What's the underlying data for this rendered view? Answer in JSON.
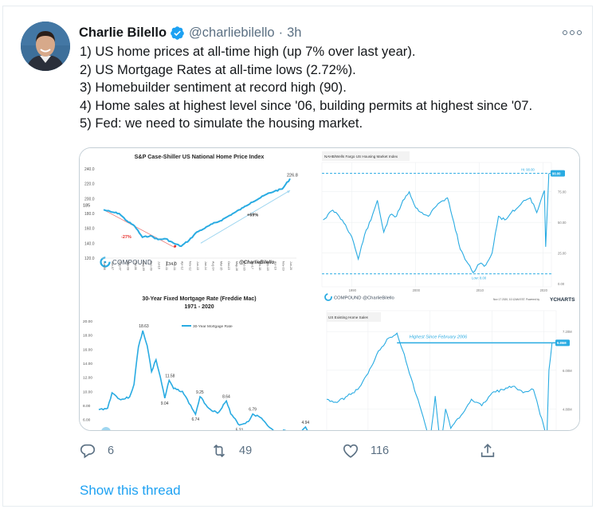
{
  "tweet": {
    "author": {
      "name": "Charlie Bilello",
      "handle": "@charliebilello",
      "verified": true,
      "avatar_icon": "profile-photo"
    },
    "separator": "·",
    "time": "3h",
    "more_icon": "more-options-icon",
    "lines": [
      "1) US home prices at all-time high (up 7% over last year).",
      "2) US Mortgage Rates at all-time lows (2.72%).",
      "3) Homebuilder sentiment at record high (90).",
      "4) Home sales at highest level since '06, building permits at highest since '07.",
      "5) Fed: we need to simulate the housing market."
    ],
    "actions": {
      "reply": {
        "icon": "reply-icon",
        "count": "6"
      },
      "retweet": {
        "icon": "retweet-icon",
        "count": "49"
      },
      "like": {
        "icon": "heart-icon",
        "count": "116"
      },
      "share": {
        "icon": "share-icon"
      }
    },
    "show_thread": "Show this thread"
  },
  "colors": {
    "accent": "#1da1f2",
    "secondary_text": "#5b7083",
    "primary_text": "#14171a",
    "border": "#e6ecf0",
    "chart_line": "#29abe2",
    "chart_red": "#e8322d"
  },
  "chart_data": [
    {
      "type": "line",
      "title": "S&P Case-Shiller US National Home Price Index",
      "ylim": [
        120,
        240
      ],
      "yticks": [
        "240.0",
        "220.0",
        "200.0",
        "180.0",
        "160.0",
        "140.0",
        "120.0"
      ],
      "categories": [
        "Jun-06",
        "Jan-07",
        "Aug-07",
        "Mar-08",
        "Oct-08",
        "May-09",
        "Dec-09",
        "Jul-10",
        "Feb-11",
        "Sep-11",
        "Apr-12",
        "Nov-12",
        "Jun-13",
        "Jan-14",
        "Aug-14",
        "Mar-15",
        "Oct-15",
        "May-16",
        "Dec-16",
        "Jul-17",
        "Feb-18",
        "Sep-18",
        "Apr-19",
        "Nov-19",
        "Jun-20"
      ],
      "values": [
        185,
        182,
        180,
        170,
        163,
        148,
        150,
        145,
        146,
        140,
        136,
        144,
        155,
        160,
        166,
        170,
        176,
        182,
        188,
        195,
        200,
        206,
        210,
        213,
        226.8
      ],
      "annotations": {
        "start": "185",
        "low": "134.0",
        "high": "226.8",
        "decline": "-27%",
        "rise": "+69%",
        "brand": "COMPOUND",
        "credit": "@CharlieBilello"
      }
    },
    {
      "type": "line",
      "title": "30-Year Fixed Mortgage Rate (Freddie Mac)",
      "subtitle": "1971 - 2020",
      "legend": "30-Year Mortgage Rate",
      "ylim": [
        4,
        20
      ],
      "yticks": [
        "20.00",
        "18.00",
        "16.00",
        "14.00",
        "12.00",
        "10.00",
        "8.00",
        "6.00"
      ],
      "x": [
        1971,
        1973,
        1974,
        1976,
        1978,
        1979,
        1980,
        1981,
        1982,
        1983,
        1984,
        1985,
        1986,
        1987,
        1988,
        1990,
        1993,
        1994,
        1996,
        1998,
        2000,
        2001,
        2003,
        2005,
        2006,
        2008,
        2010,
        2012,
        2013,
        2016,
        2018,
        2020
      ],
      "values": [
        7.4,
        7.6,
        9.8,
        8.8,
        9.2,
        11,
        16.3,
        18.63,
        16.5,
        12.8,
        14.5,
        12,
        9.04,
        11.58,
        10.4,
        10,
        6.74,
        9.25,
        7.6,
        6.9,
        8.64,
        6.8,
        5.21,
        5.7,
        6.79,
        6.2,
        4.8,
        3.5,
        4.5,
        3.5,
        4.94,
        2.72
      ],
      "annotations": [
        "18.63",
        "11.58",
        "9.04",
        "9.25",
        "6.74",
        "8.64",
        "5.21",
        "6.79",
        "4.94"
      ]
    },
    {
      "type": "line",
      "title": "NAHB/Wells Fargo US Housing Market Index",
      "ylim": [
        0,
        95
      ],
      "yticks": [
        "75.00",
        "50.00",
        "25.00",
        "0.00"
      ],
      "xticks": [
        "1990",
        "2000",
        "2010",
        "2020"
      ],
      "x": [
        1985.5,
        1987,
        1988,
        1989,
        1990,
        1991,
        1992,
        1993,
        1994,
        1995,
        1996,
        1997,
        1998,
        1999,
        2000,
        2001,
        2002,
        2003,
        2004,
        2005,
        2006,
        2007,
        2008,
        2009,
        2010,
        2011,
        2012,
        2013,
        2014,
        2015,
        2016,
        2017,
        2018,
        2019,
        2020.2,
        2020.4,
        2020.9
      ],
      "values": [
        52,
        60,
        55,
        48,
        38,
        20,
        40,
        52,
        68,
        42,
        56,
        55,
        68,
        75,
        62,
        58,
        55,
        62,
        67,
        70,
        50,
        28,
        18,
        9,
        16,
        15,
        25,
        55,
        52,
        58,
        62,
        68,
        70,
        58,
        76,
        30,
        90
      ],
      "reference_lines": {
        "high": "Hi: 90.00",
        "low": "Low: 8.00"
      },
      "last_value": "90.00",
      "footer": {
        "brand": "COMPOUND @CharlieBilello",
        "date": "Nov 17 2020, 10:12AM EST.",
        "powered_by": "Powered by",
        "provider": "YCHARTS"
      }
    },
    {
      "type": "line",
      "title": "US Existing Home Sales",
      "ylim": [
        3.5,
        7.6
      ],
      "yticks": [
        "7.20M",
        "6.00M",
        "4.80M"
      ],
      "x": [
        1999,
        2000,
        2001,
        2002,
        2003,
        2004,
        2005,
        2005.8,
        2006.5,
        2007,
        2008,
        2009,
        2009.5,
        2010,
        2010.5,
        2011,
        2012,
        2013,
        2014,
        2015,
        2016,
        2017,
        2018,
        2019,
        2020.3,
        2020.5,
        2020.8
      ],
      "values": [
        5.1,
        5.0,
        5.2,
        5.4,
        5.9,
        6.6,
        7.0,
        7.15,
        6.5,
        5.9,
        4.9,
        3.8,
        5.2,
        3.6,
        4.8,
        4.2,
        4.6,
        5.1,
        4.9,
        5.3,
        5.4,
        5.5,
        5.3,
        5.4,
        3.9,
        6.0,
        6.85
      ],
      "annotation": "Highest Since February 2006",
      "last_value": "6.85M"
    }
  ]
}
